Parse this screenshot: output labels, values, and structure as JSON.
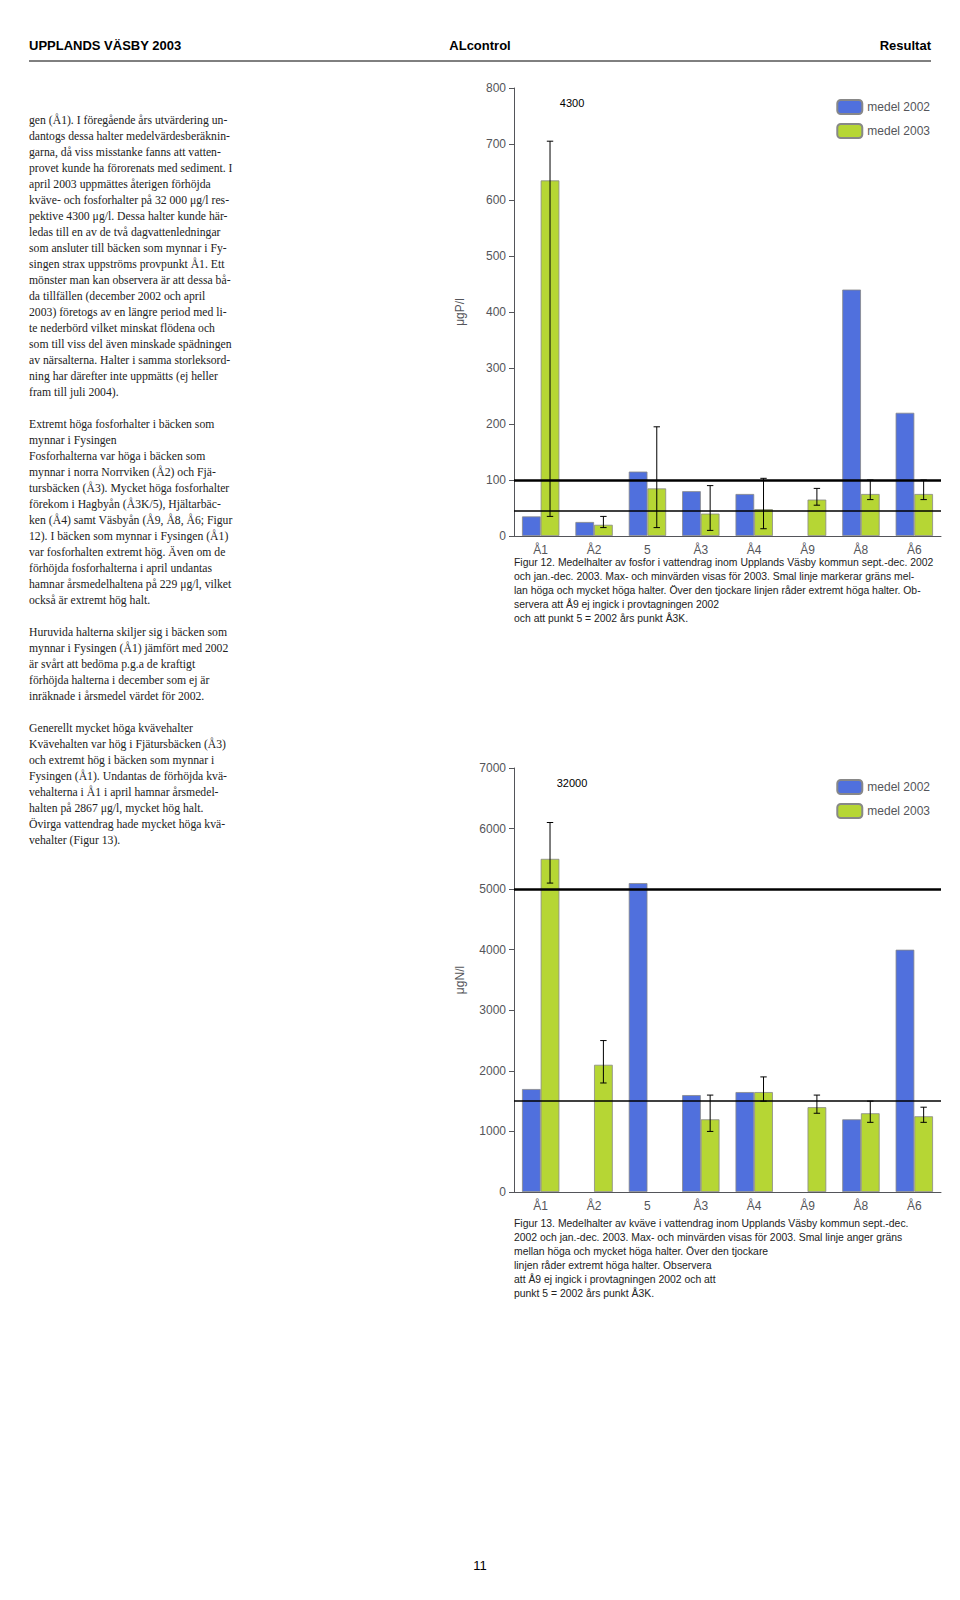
{
  "header": [
    "UPPLANDS VÄSBY 2003",
    "ALcontrol",
    "Resultat"
  ],
  "page_number": "11",
  "body_text": [
    "gen (Å1). I föregående års utvärdering un-",
    "dantogs dessa halter medelvärdesberäknin-",
    "garna, då viss misstanke fanns att vatten-",
    "provet kunde ha förorenats med sediment. I",
    "april 2003 uppmättes återigen förhöjda",
    "kväve- och fosforhalter på 32 000 μg/l res-",
    "pektive 4300 μg/l. Dessa halter kunde här-",
    "ledas till en av de två dagvattenledningar",
    "som ansluter till bäcken som mynnar i Fy-",
    "singen strax uppströms provpunkt Å1. Ett",
    "mönster man kan observera är att dessa bå-",
    "da tillfällen (december 2002 och april",
    "2003) företogs av en längre period med li-",
    "te nederbörd vilket minskat flödena och",
    "som till viss del även minskade spädningen",
    "av närsalterna. Halter i samma storleksord-",
    "ning har därefter inte uppmätts (ej heller",
    "fram till juli 2004).",
    "",
    "Extremt höga fosforhalter i bäcken som",
    "mynnar i Fysingen",
    "Fosforhalterna var höga i bäcken som",
    "mynnar i norra Norrviken (Å2) och Fjä-",
    "tursbäcken (Å3). Mycket höga fosforhalter",
    "förekom i Hagbyån (Å3K/5), Hjältarbäc-",
    "ken (Å4) samt Väsbyån (Å9, Å8, Å6; Figur",
    "12). I bäcken som mynnar i Fysingen (Å1)",
    "var fosforhalten extremt hög. Även om de",
    "förhöjda fosforhalterna i april undantas",
    "hamnar årsmedelhaltena på 229 μg/l, vilket",
    "också är extremt hög halt.",
    "",
    "Huruvida halterna skiljer sig i bäcken som",
    "mynnar i Fysingen (Å1) jämfört med 2002",
    "är svårt att bedöma p.g.a de kraftigt",
    "förhöjda halterna i december som ej är",
    "inräknade i årsmedel värdet för 2002.",
    "",
    "Generellt mycket höga kvävehalter",
    "Kvävehalten var hög i Fjätursbäcken (Å3)",
    "och extremt hög i bäcken som mynnar i",
    "Fysingen (Å1). Undantas de förhöjda kvä-",
    "vehalterna i Å1 i april hamnar årsmedel-",
    "halten på 2867 μg/l, mycket hög halt.",
    "Övirga vattendrag hade mycket höga kvä-",
    "vehalter (Figur 13)."
  ],
  "chart_data": [
    {
      "type": "bar",
      "categories": [
        "Å1",
        "Å2",
        "5",
        "Å3",
        "Å4",
        "Å9",
        "Å8",
        "Å6"
      ],
      "ylabel": "μgP/l",
      "ylim": [
        0,
        800
      ],
      "yticks": [
        0,
        100,
        200,
        300,
        400,
        500,
        600,
        700,
        800
      ],
      "grid": false,
      "legend": "upper right",
      "series": [
        {
          "name": "medel 2002",
          "values": [
            35,
            25,
            115,
            80,
            75,
            null,
            440,
            220
          ]
        },
        {
          "name": "medel 2003",
          "values": [
            635,
            20,
            85,
            40,
            48,
            65,
            75,
            75
          ],
          "err_minus": [
            600,
            5,
            70,
            30,
            35,
            10,
            10,
            10
          ],
          "err_plus": [
            70,
            15,
            110,
            50,
            55,
            20,
            25,
            25
          ]
        }
      ],
      "reference_lines": [
        45,
        100
      ],
      "annotations": [
        {
          "text": "4300",
          "x": "Å1"
        }
      ],
      "caption": "Figur 12. Medelhalter av fosfor i vattendrag inom Upplands Väsby kommun sept.-dec. 2002 och jan.-dec. 2003. Max- och minvärden visas för 2003. Smal linje markerar gräns mel-\nlan höga och mycket höga halter. Över den tjockare linjen råder extremt höga halter. Ob-\nservera att Å9 ej ingick i provtagningen 2002\noch att punkt 5 = 2002 års punkt Å3K."
    },
    {
      "type": "bar",
      "categories": [
        "Å1",
        "Å2",
        "5",
        "Å3",
        "Å4",
        "Å9",
        "Å8",
        "Å6"
      ],
      "ylabel": "μgN/l",
      "ylim": [
        0,
        7000
      ],
      "yticks": [
        0,
        1000,
        2000,
        3000,
        4000,
        5000,
        6000,
        7000
      ],
      "grid": false,
      "legend": "upper right",
      "series": [
        {
          "name": "medel 2002",
          "values": [
            1700,
            null,
            5100,
            1600,
            1650,
            null,
            1200,
            4000
          ]
        },
        {
          "name": "medel 2003",
          "values": [
            5500,
            2100,
            null,
            1200,
            1650,
            1400,
            1300,
            1250
          ],
          "err_minus": [
            400,
            300,
            null,
            200,
            150,
            100,
            150,
            100
          ],
          "err_plus": [
            600,
            400,
            null,
            400,
            250,
            200,
            200,
            150
          ]
        }
      ],
      "reference_lines": [
        1500,
        5000
      ],
      "annotations": [
        {
          "text": "32000",
          "x": "Å1"
        }
      ],
      "caption": "Figur 13. Medelhalter av kväve i vattendrag inom Upplands Väsby kommun sept.-dec. 2002 och jan.-dec. 2003. Max- och minvärden visas för 2003. Smal linje anger gräns mellan höga och mycket höga halter. Över den tjockare\nlinjen råder extremt höga halter. Observera\natt Å9 ej ingick i provtagningen 2002 och att\npunkt 5 = 2002 års punkt Å3K."
    }
  ]
}
